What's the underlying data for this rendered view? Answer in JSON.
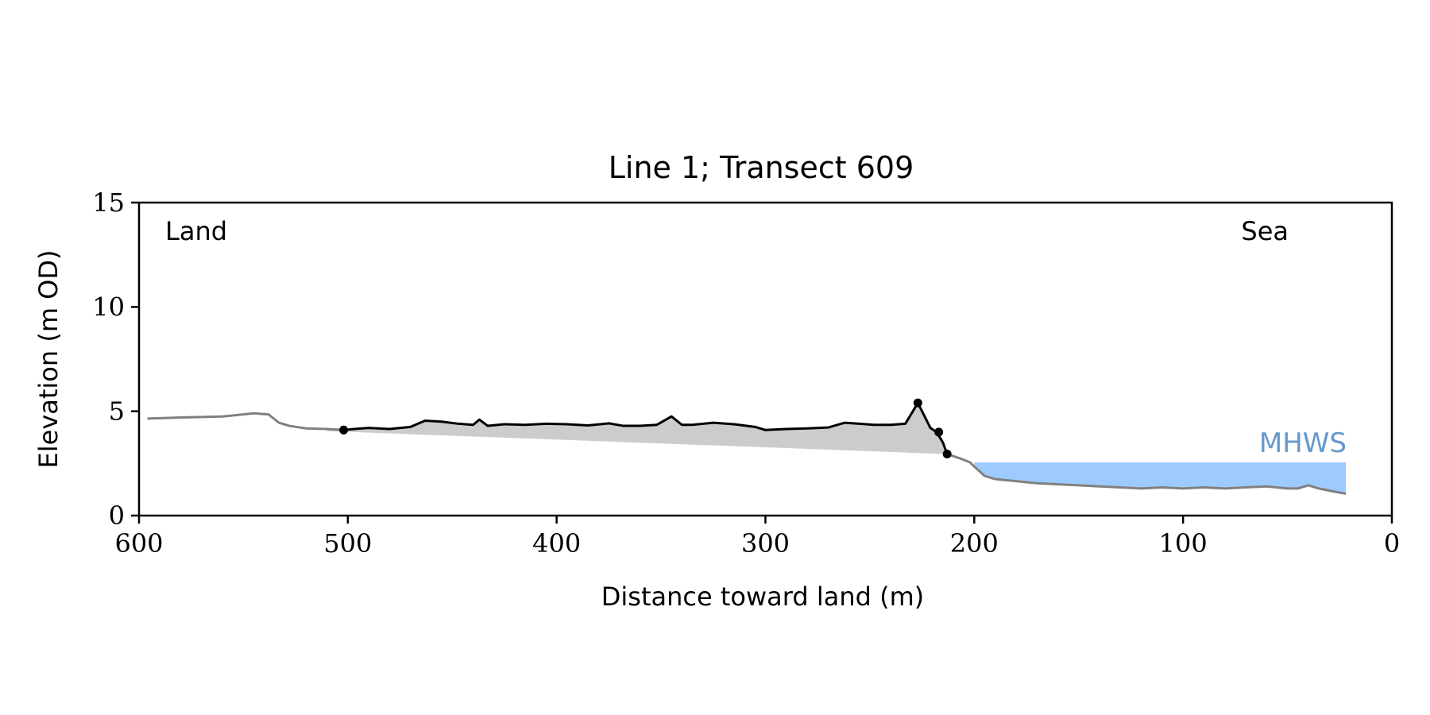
{
  "chart_data": {
    "type": "line",
    "title": "Line 1; Transect 609",
    "xlabel": "Distance toward land (m)",
    "ylabel": "Elevation (m OD)",
    "xlim": [
      600,
      0
    ],
    "ylim": [
      0,
      15
    ],
    "x_ticks": [
      600,
      500,
      400,
      300,
      200,
      100,
      0
    ],
    "y_ticks": [
      0,
      5,
      10,
      15
    ],
    "grid": false,
    "legend": "none",
    "annotations": {
      "left": "Land",
      "right": "Sea",
      "water": "MHWS"
    },
    "mhws_level": 2.55,
    "water_x_range": [
      200,
      22
    ],
    "colors": {
      "profile": "#808080",
      "dune": "#000000",
      "fill": "#cccccc",
      "water": "#9ecbff",
      "mhws_text": "#6699cc"
    },
    "series": [
      {
        "x": [
          596,
          580,
          560,
          550,
          545,
          538,
          533,
          528,
          520,
          510,
          502
        ],
        "y": [
          4.65,
          4.7,
          4.75,
          4.85,
          4.9,
          4.85,
          4.45,
          4.3,
          4.18,
          4.15,
          4.1
        ]
      },
      {
        "x": [
          502,
          497,
          490,
          480,
          470,
          463,
          455,
          447,
          440,
          437,
          433,
          425,
          415,
          405,
          395,
          385,
          375,
          368,
          360,
          352,
          345,
          340,
          335,
          325,
          315,
          305,
          300,
          290,
          280,
          270,
          262,
          255,
          248,
          240,
          233,
          227,
          221,
          218,
          215,
          213
        ],
        "y": [
          4.1,
          4.15,
          4.2,
          4.15,
          4.25,
          4.55,
          4.5,
          4.4,
          4.35,
          4.6,
          4.3,
          4.38,
          4.35,
          4.4,
          4.38,
          4.32,
          4.42,
          4.3,
          4.3,
          4.35,
          4.75,
          4.35,
          4.35,
          4.45,
          4.38,
          4.25,
          4.1,
          4.15,
          4.18,
          4.22,
          4.45,
          4.4,
          4.35,
          4.35,
          4.4,
          5.4,
          4.2,
          4.0,
          3.5,
          2.95
        ]
      },
      {
        "x": [
          213,
          207,
          202,
          200,
          195,
          190,
          185,
          180,
          175,
          170,
          160,
          150,
          140,
          130,
          120,
          110,
          100,
          90,
          80,
          70,
          60,
          50,
          45,
          40,
          35,
          30,
          25,
          22
        ],
        "y": [
          2.95,
          2.75,
          2.55,
          2.35,
          1.9,
          1.75,
          1.7,
          1.65,
          1.6,
          1.55,
          1.5,
          1.45,
          1.4,
          1.35,
          1.3,
          1.35,
          1.3,
          1.35,
          1.3,
          1.35,
          1.4,
          1.3,
          1.3,
          1.45,
          1.3,
          1.2,
          1.1,
          1.05
        ]
      }
    ],
    "markers": [
      {
        "x": 502,
        "y": 4.1
      },
      {
        "x": 227,
        "y": 5.4
      },
      {
        "x": 217,
        "y": 4.0
      },
      {
        "x": 213,
        "y": 2.95
      }
    ],
    "fill_baseline": [
      {
        "x": 510,
        "y": 4.05
      },
      {
        "x": 213,
        "y": 2.95
      }
    ]
  }
}
